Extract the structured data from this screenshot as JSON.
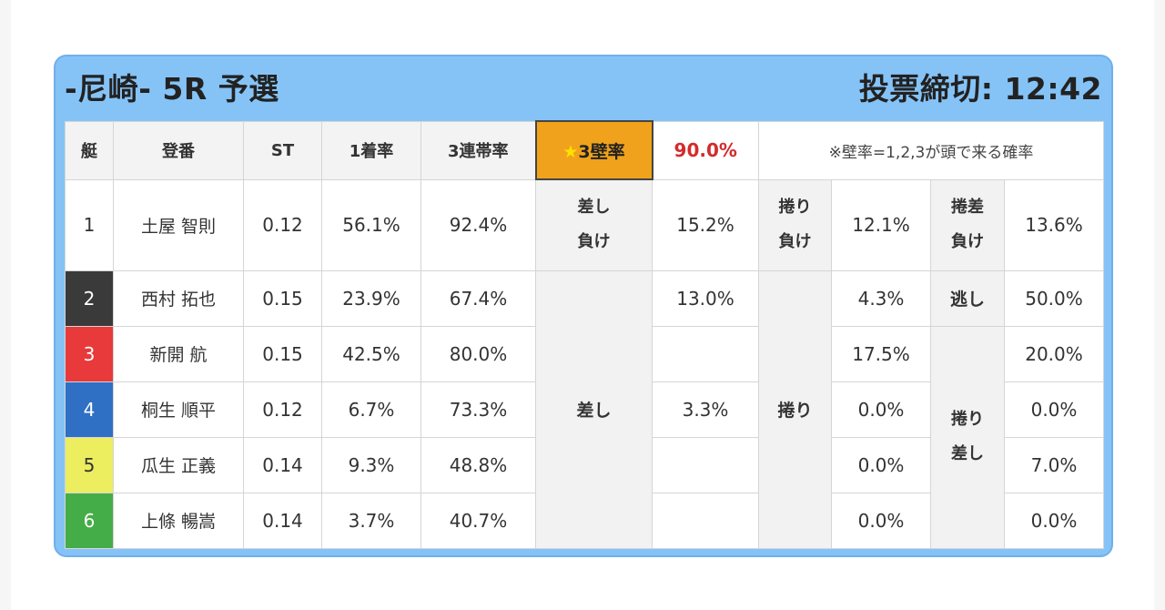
{
  "header": {
    "race_title": "-尼崎- 5R 予選",
    "deadline": "投票締切: 12:42"
  },
  "table": {
    "columns": {
      "lane": "艇",
      "name": "登番",
      "st": "ST",
      "win1": "1着率",
      "top3": "3連帯率",
      "kabe_label": "3壁率",
      "kabe_value": "90.0%",
      "note": "※壁率=1,2,3が頭で来る確率"
    },
    "rows": [
      {
        "lane": "1",
        "name": "土屋 智則",
        "st": "0.12",
        "win1": "56.1%",
        "top3": "92.4%",
        "v1": "15.2%",
        "v2": "12.1%",
        "v3": "13.6%"
      },
      {
        "lane": "2",
        "name": "西村 拓也",
        "st": "0.15",
        "win1": "23.9%",
        "top3": "67.4%",
        "v1": "13.0%",
        "v2": "4.3%",
        "v3": "50.0%"
      },
      {
        "lane": "3",
        "name": "新開 航",
        "st": "0.15",
        "win1": "42.5%",
        "top3": "80.0%",
        "v1": "",
        "v2": "17.5%",
        "v3": "20.0%"
      },
      {
        "lane": "4",
        "name": "桐生 順平",
        "st": "0.12",
        "win1": "6.7%",
        "top3": "73.3%",
        "v1": "3.3%",
        "v2": "0.0%",
        "v3": "0.0%"
      },
      {
        "lane": "5",
        "name": "瓜生 正義",
        "st": "0.14",
        "win1": "9.3%",
        "top3": "48.8%",
        "v1": "",
        "v2": "0.0%",
        "v3": "7.0%"
      },
      {
        "lane": "6",
        "name": "上條 暢嵩",
        "st": "0.14",
        "win1": "3.7%",
        "top3": "40.7%",
        "v1": "",
        "v2": "0.0%",
        "v3": "0.0%"
      }
    ],
    "kimarite": {
      "sashi_make": [
        "差し",
        "負け"
      ],
      "makuri_make": [
        "捲り",
        "負け"
      ],
      "makurisashi_make": [
        "捲差",
        "負け"
      ],
      "sashi": "差し",
      "makuri": "捲り",
      "nige": "逃し",
      "makurisashi": [
        "捲り",
        "差し"
      ]
    }
  },
  "colors": {
    "card_bg": "#85c3f7",
    "kabe_bg": "#f0a21c",
    "kabe_value": "#d42b2b",
    "lane_1": "#ffffff",
    "lane_2": "#3a3a3a",
    "lane_3": "#e8393b",
    "lane_4": "#2f6fc4",
    "lane_5": "#eced5f",
    "lane_6": "#45ad47"
  },
  "icons": {
    "kabe_star": "star-icon"
  }
}
